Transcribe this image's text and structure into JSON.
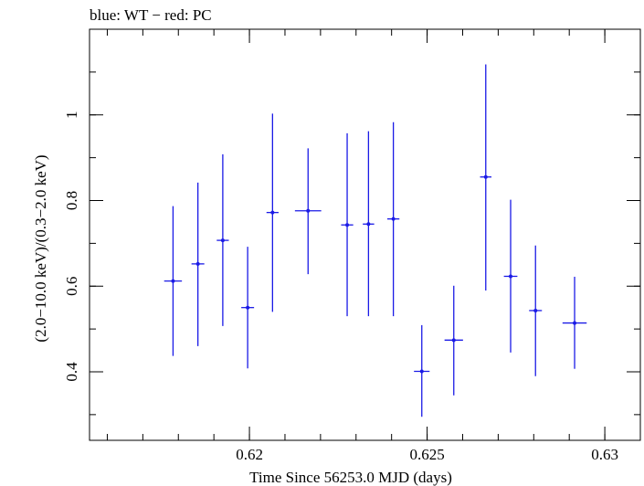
{
  "chart_data": {
    "type": "scatter",
    "title": "blue: WT − red: PC",
    "xlabel": "Time Since 56253.0 MJD (days)",
    "ylabel": "(2.0−10.0 keV)/(0.3−2.0 keV)",
    "xlim": [
      0.6155,
      0.631
    ],
    "ylim": [
      0.24,
      1.2
    ],
    "x_ticks": [
      {
        "value": 0.62,
        "label": "0.62"
      },
      {
        "value": 0.625,
        "label": "0.625"
      },
      {
        "value": 0.63,
        "label": "0.63"
      }
    ],
    "y_ticks": [
      {
        "value": 0.4,
        "label": "0.4"
      },
      {
        "value": 0.6,
        "label": "0.6"
      },
      {
        "value": 0.8,
        "label": "0.8"
      },
      {
        "value": 1.0,
        "label": "1"
      }
    ],
    "x_minor_step": 0.001,
    "y_minor_step": 0.1,
    "grid": false,
    "color": "#1a1ae6",
    "series": [
      {
        "points": [
          {
            "x": 0.61785,
            "xerr": 0.00025,
            "y": 0.612,
            "ylo": 0.437,
            "yhi": 0.787
          },
          {
            "x": 0.61855,
            "xerr": 0.00018,
            "y": 0.652,
            "ylo": 0.46,
            "yhi": 0.842
          },
          {
            "x": 0.61925,
            "xerr": 0.00017,
            "y": 0.707,
            "ylo": 0.507,
            "yhi": 0.908
          },
          {
            "x": 0.61995,
            "xerr": 0.00018,
            "y": 0.55,
            "ylo": 0.408,
            "yhi": 0.692
          },
          {
            "x": 0.62065,
            "xerr": 0.00017,
            "y": 0.772,
            "ylo": 0.54,
            "yhi": 1.003
          },
          {
            "x": 0.62165,
            "xerr": 0.00037,
            "y": 0.776,
            "ylo": 0.628,
            "yhi": 0.922
          },
          {
            "x": 0.62275,
            "xerr": 0.00017,
            "y": 0.743,
            "ylo": 0.53,
            "yhi": 0.957
          },
          {
            "x": 0.62335,
            "xerr": 0.00016,
            "y": 0.745,
            "ylo": 0.53,
            "yhi": 0.962
          },
          {
            "x": 0.62405,
            "xerr": 0.00017,
            "y": 0.757,
            "ylo": 0.53,
            "yhi": 0.983
          },
          {
            "x": 0.62485,
            "xerr": 0.00022,
            "y": 0.401,
            "ylo": 0.295,
            "yhi": 0.509
          },
          {
            "x": 0.62575,
            "xerr": 0.00026,
            "y": 0.474,
            "ylo": 0.345,
            "yhi": 0.601
          },
          {
            "x": 0.62665,
            "xerr": 0.00016,
            "y": 0.855,
            "ylo": 0.59,
            "yhi": 1.118
          },
          {
            "x": 0.62735,
            "xerr": 0.00019,
            "y": 0.623,
            "ylo": 0.445,
            "yhi": 0.802
          },
          {
            "x": 0.62805,
            "xerr": 0.00018,
            "y": 0.543,
            "ylo": 0.39,
            "yhi": 0.695
          },
          {
            "x": 0.62915,
            "xerr": 0.00034,
            "y": 0.514,
            "ylo": 0.407,
            "yhi": 0.622
          }
        ]
      }
    ]
  }
}
